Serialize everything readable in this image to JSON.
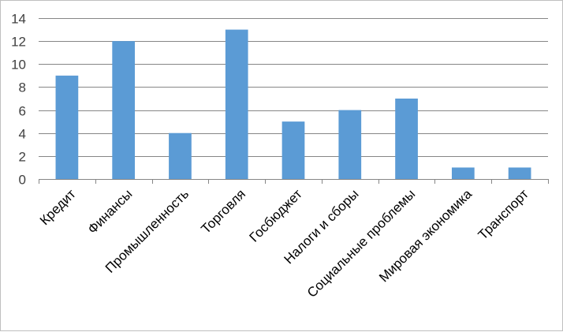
{
  "chart_data": {
    "type": "bar",
    "title": "",
    "xlabel": "",
    "ylabel": "",
    "categories": [
      "Кредит",
      "Финансы",
      "Промышленность",
      "Торговля",
      "Госбюджет",
      "Налоги и сборы",
      "Социальные проблемы",
      "Мировая экономика",
      "Транспорт"
    ],
    "values": [
      9,
      12,
      4,
      13,
      5,
      6,
      7,
      1,
      1
    ],
    "ylim": [
      0,
      14
    ],
    "yticks": [
      0,
      2,
      4,
      6,
      8,
      10,
      12,
      14
    ],
    "grid": true,
    "legend": "none",
    "bar_color": "#5b9bd5",
    "grid_color": "#868686",
    "axis_color": "#868686"
  }
}
